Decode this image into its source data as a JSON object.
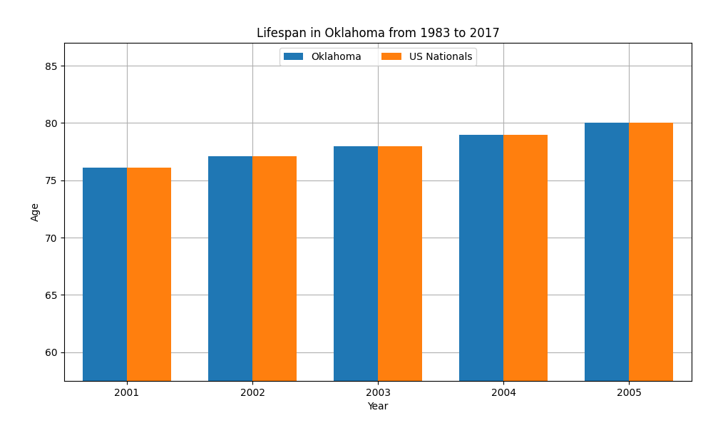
{
  "chart_data": {
    "type": "bar",
    "title": "Lifespan in Oklahoma from 1983 to 2017",
    "x_label": "Year",
    "y_label": "Age",
    "categories": [
      "2001",
      "2002",
      "2003",
      "2004",
      "2005"
    ],
    "series": [
      {
        "name": "Oklahoma",
        "values": [
          76.1,
          77.1,
          78.0,
          79.0,
          80.0
        ]
      },
      {
        "name": "US Nationals",
        "values": [
          76.1,
          77.1,
          78.0,
          79.0,
          80.0
        ]
      }
    ],
    "ylim": [
      57.5,
      87
    ],
    "yticks": [
      60,
      65,
      70,
      75,
      80,
      85
    ],
    "grid": true,
    "legend": "upper center"
  }
}
